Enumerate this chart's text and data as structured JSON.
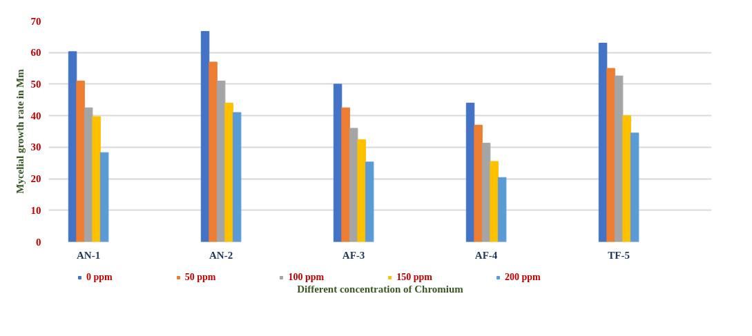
{
  "chart_data": {
    "type": "bar",
    "xlabel": "Different concentration of Chromium",
    "ylabel": "Mycelial growth rate in Mm",
    "categories": [
      "AN-1",
      "AN-2",
      "AF-3",
      "AF-4",
      "TF-5"
    ],
    "series": [
      {
        "name": "0 ppm",
        "color": "#4472c4",
        "values": [
          60.3,
          66.7,
          50,
          44,
          63
        ]
      },
      {
        "name": "50 ppm",
        "color": "#ed7d31",
        "values": [
          51,
          57,
          42.5,
          37,
          55
        ]
      },
      {
        "name": "100 ppm",
        "color": "#a5a5a5",
        "values": [
          42.5,
          51,
          36,
          31.3,
          52.6
        ]
      },
      {
        "name": "150 ppm",
        "color": "#ffc000",
        "values": [
          39.7,
          44,
          32.4,
          25.5,
          40
        ]
      },
      {
        "name": "200 ppm",
        "color": "#5b9bd5",
        "values": [
          28.3,
          41,
          25.3,
          20.4,
          34.5
        ]
      }
    ],
    "ylim": [
      0,
      70
    ],
    "yticks": [
      0,
      10,
      20,
      30,
      40,
      50,
      60,
      70
    ],
    "grid": "y",
    "legend": "bottom"
  }
}
